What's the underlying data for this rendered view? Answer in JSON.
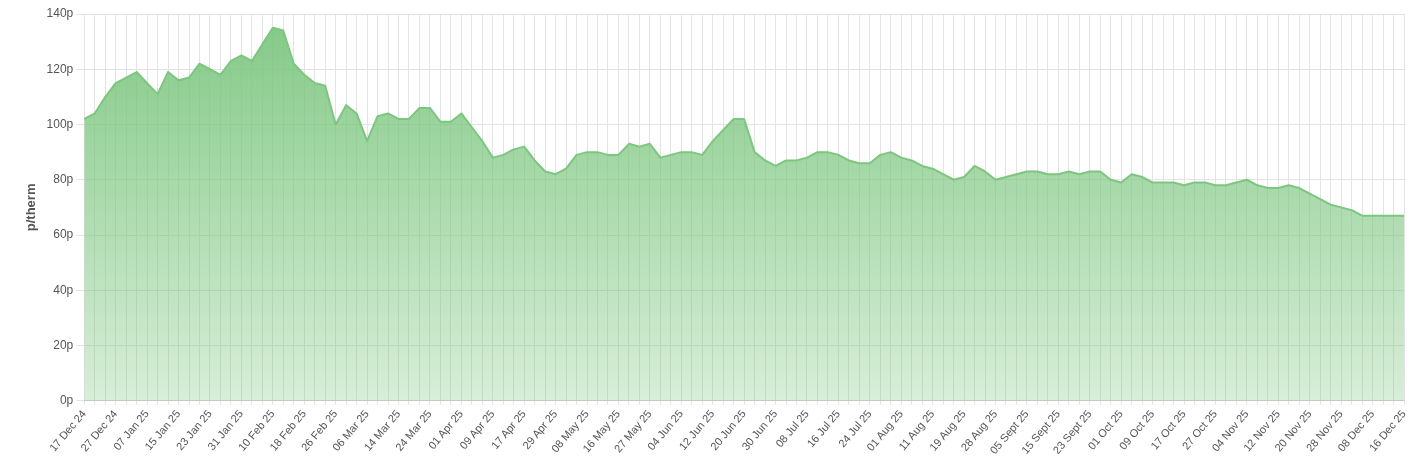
{
  "chart_data": {
    "type": "area",
    "ylabel": "p/therm",
    "categories": [
      "17 Dec 24",
      null,
      null,
      "27 Dec 24",
      null,
      null,
      "07 Jan 25",
      null,
      null,
      "15 Jan 25",
      null,
      null,
      "23 Jan 25",
      null,
      null,
      "31 Jan 25",
      null,
      null,
      "10 Feb 25",
      null,
      null,
      "18 Feb 25",
      null,
      null,
      "26 Feb 25",
      null,
      null,
      "06 Mar 25",
      null,
      null,
      "14 Mar 25",
      null,
      null,
      "24 Mar 25",
      null,
      null,
      "01 Apr 25",
      null,
      null,
      "09 Apr 25",
      null,
      null,
      "17 Apr 25",
      null,
      null,
      "29 Apr 25",
      null,
      null,
      "08 May 25",
      null,
      null,
      "16 May 25",
      null,
      null,
      "27 May 25",
      null,
      null,
      "04 Jun 25",
      null,
      null,
      "12 Jun 25",
      null,
      null,
      "20 Jun 25",
      null,
      null,
      "30 Jun 25",
      null,
      null,
      "08 Jul 25",
      null,
      null,
      "16 Jul 25",
      null,
      null,
      "24 Jul 25",
      null,
      null,
      "01 Aug 25",
      null,
      null,
      "11 Aug 25",
      null,
      null,
      "19 Aug 25",
      null,
      null,
      "28 Aug 25",
      null,
      null,
      "05 Sept 25",
      null,
      null,
      "15 Sept 25",
      null,
      null,
      "23 Sept 25",
      null,
      null,
      "01 Oct 25",
      null,
      null,
      "09 Oct 25",
      null,
      null,
      "17 Oct 25",
      null,
      null,
      "27 Oct 25",
      null,
      null,
      "04 Nov 25",
      null,
      null,
      "12 Nov 25",
      null,
      null,
      "20 Nov 25",
      null,
      null,
      "28 Nov 25",
      null,
      null,
      "08 Dec 25",
      null,
      null,
      "16 Dec 25"
    ],
    "series": [
      {
        "color": "#7cc67f",
        "values": [
          102,
          104,
          110,
          115,
          117,
          119,
          115,
          111,
          119,
          116,
          117,
          122,
          120,
          118,
          123,
          125,
          123,
          129,
          135,
          134,
          122,
          118,
          115,
          114,
          100,
          107,
          104,
          94,
          103,
          104,
          102,
          102,
          106,
          106,
          101,
          101,
          104,
          99,
          94,
          88,
          89,
          91,
          92,
          87,
          83,
          82,
          84,
          89,
          90,
          90,
          89,
          89,
          93,
          92,
          93,
          88,
          89,
          90,
          90,
          89,
          94,
          98,
          102,
          102,
          90,
          87,
          85,
          87,
          87,
          88,
          90,
          90,
          89,
          87,
          86,
          86,
          89,
          90,
          88,
          87,
          85,
          84,
          82,
          80,
          81,
          85,
          83,
          80,
          81,
          82,
          83,
          83,
          82,
          82,
          83,
          82,
          83,
          83,
          80,
          79,
          82,
          81,
          79,
          79,
          79,
          78,
          79,
          79,
          78,
          78,
          79,
          80,
          78,
          77,
          77,
          78,
          77,
          75,
          73,
          71,
          70,
          69,
          67,
          67,
          67,
          67,
          67
        ]
      }
    ],
    "ylim": [
      0,
      140
    ],
    "yticks": [
      {
        "value": 0,
        "label": "0p"
      },
      {
        "value": 20,
        "label": "20p"
      },
      {
        "value": 40,
        "label": "40p"
      },
      {
        "value": 60,
        "label": "60p"
      },
      {
        "value": 80,
        "label": "80p"
      },
      {
        "value": 100,
        "label": "100p"
      },
      {
        "value": 120,
        "label": "120p"
      },
      {
        "value": 140,
        "label": "140p"
      }
    ],
    "grid": true,
    "legend": false
  }
}
